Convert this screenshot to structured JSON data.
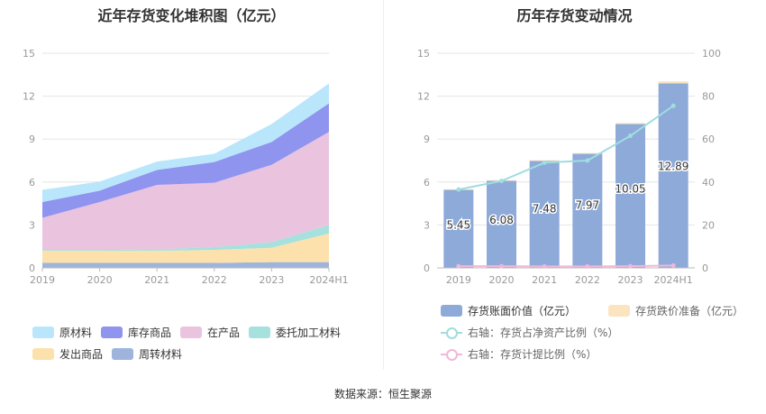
{
  "left": {
    "title": "近年存货变化堆积图（亿元）"
  },
  "right": {
    "title": "历年存货变动情况"
  },
  "source": "数据来源：恒生聚源",
  "colors": {
    "raw_materials": "#b9e6fb",
    "inventory_goods": "#8f94ef",
    "wip": "#eac3df",
    "consigned": "#a6e1de",
    "shipped": "#fde1ad",
    "turnover": "#9eb4dc",
    "bar_value": "#8daad9",
    "bar_reserve": "#fde4c0",
    "line_ratio_assets": "#9fdde0",
    "line_provision": "#f2b7d8"
  },
  "chart_data": [
    {
      "type": "area",
      "title": "近年存货变化堆积图（亿元）",
      "categories": [
        "2019",
        "2020",
        "2021",
        "2022",
        "2023",
        "2024H1"
      ],
      "ylim": [
        0,
        15
      ],
      "yticks": [
        0,
        3,
        6,
        9,
        12,
        15
      ],
      "stacked": true,
      "grid": true,
      "legend_position": "bottom",
      "series": [
        {
          "name": "周转材料",
          "color_key": "turnover",
          "values": [
            0.35,
            0.35,
            0.35,
            0.35,
            0.4,
            0.4
          ]
        },
        {
          "name": "发出商品",
          "color_key": "shipped",
          "values": [
            0.85,
            0.85,
            0.85,
            0.9,
            1.0,
            2.0
          ]
        },
        {
          "name": "委托加工材料",
          "color_key": "consigned",
          "values": [
            0.05,
            0.05,
            0.1,
            0.2,
            0.4,
            0.6
          ]
        },
        {
          "name": "在产品",
          "color_key": "wip",
          "values": [
            2.25,
            3.35,
            4.5,
            4.5,
            5.4,
            6.5
          ]
        },
        {
          "name": "库存商品",
          "color_key": "inventory_goods",
          "values": [
            1.1,
            0.8,
            1.05,
            1.45,
            1.6,
            2.0
          ]
        },
        {
          "name": "原材料",
          "color_key": "raw_materials",
          "values": [
            0.85,
            0.63,
            0.58,
            0.57,
            1.25,
            1.39
          ]
        }
      ],
      "legend_order": [
        "原材料",
        "库存商品",
        "在产品",
        "委托加工材料",
        "发出商品",
        "周转材料"
      ]
    },
    {
      "type": "bar",
      "title": "历年存货变动情况",
      "categories": [
        "2019",
        "2020",
        "2021",
        "2022",
        "2023",
        "2024H1"
      ],
      "ylim": [
        0,
        15
      ],
      "yticks": [
        0,
        3,
        6,
        9,
        12,
        15
      ],
      "y2lim": [
        0,
        100
      ],
      "y2ticks": [
        0,
        20,
        40,
        60,
        80,
        100
      ],
      "grid": true,
      "legend_position": "bottom",
      "series": [
        {
          "name": "存货账面价值（亿元）",
          "kind": "bar",
          "color_key": "bar_value",
          "values": [
            5.45,
            6.08,
            7.48,
            7.97,
            10.05,
            12.89
          ],
          "labels": [
            "5.45",
            "6.08",
            "7.48",
            "7.97",
            "10.05",
            "12.89"
          ]
        },
        {
          "name": "存货跌价准备（亿元）",
          "kind": "bar",
          "color_key": "bar_reserve",
          "values": [
            0.05,
            0.05,
            0.05,
            0.06,
            0.08,
            0.15
          ]
        },
        {
          "name": "右轴：存货占净资产比例（%）",
          "kind": "line",
          "axis": "right",
          "color_key": "line_ratio_assets",
          "values": [
            36.5,
            40.5,
            49,
            50,
            61.5,
            75.5
          ]
        },
        {
          "name": "右轴：存货计提比例（%）",
          "kind": "line",
          "axis": "right",
          "color_key": "line_provision",
          "values": [
            0.8,
            0.8,
            0.7,
            0.7,
            0.8,
            1.1
          ]
        }
      ]
    }
  ]
}
